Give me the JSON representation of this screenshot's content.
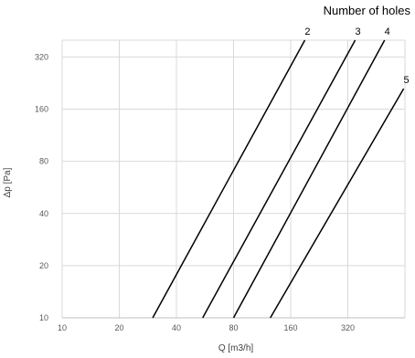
{
  "chart_data": {
    "type": "line",
    "title": "",
    "xlabel": "Q [m3/h]",
    "ylabel": "Δp  [Pa]",
    "x_scale": "log2",
    "y_scale": "log2",
    "xlim": [
      10,
      640
    ],
    "ylim": [
      10,
      400
    ],
    "x_ticks": [
      10,
      20,
      40,
      80,
      160,
      320
    ],
    "y_ticks": [
      10,
      20,
      40,
      80,
      160,
      320
    ],
    "x_tick_labels": [
      "10",
      "20",
      "40",
      "80",
      "160",
      "320"
    ],
    "y_tick_labels": [
      "10",
      "20",
      "40",
      "80",
      "160",
      "320"
    ],
    "grid": true,
    "legend_title": "Number of holes",
    "legend_position": "top-right",
    "series": [
      {
        "name": "2",
        "x": [
          30,
          190
        ],
        "y": [
          10,
          400
        ]
      },
      {
        "name": "3",
        "x": [
          55,
          350
        ],
        "y": [
          10,
          400
        ]
      },
      {
        "name": "4",
        "x": [
          80,
          500
        ],
        "y": [
          10,
          400
        ]
      },
      {
        "name": "5",
        "x": [
          125,
          630
        ],
        "y": [
          10,
          210
        ]
      }
    ],
    "line_color": "#000000",
    "grid_color": "#d9d9d9"
  }
}
